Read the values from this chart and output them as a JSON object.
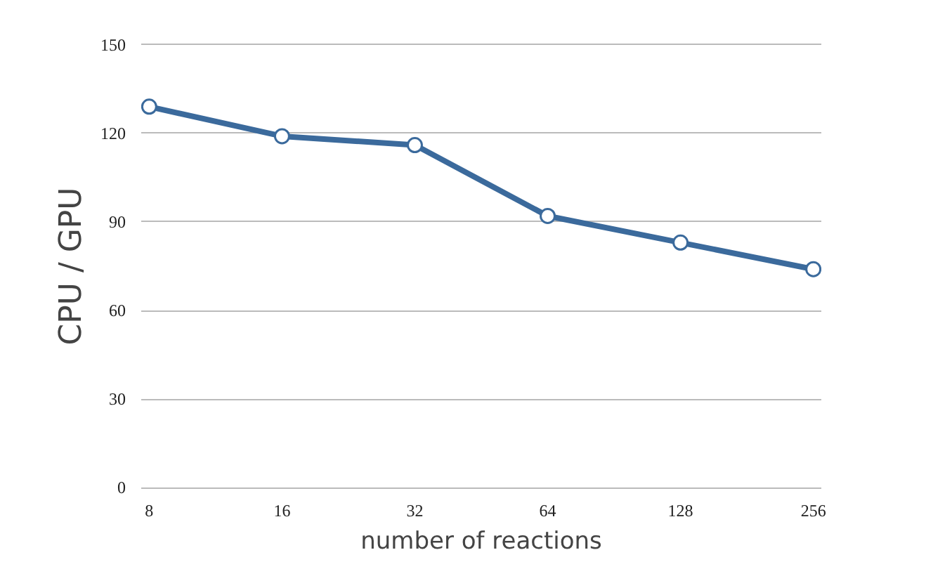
{
  "chart_data": {
    "type": "line",
    "xlabel": "number of reactions",
    "ylabel": "CPU / GPU",
    "categories": [
      "8",
      "16",
      "32",
      "64",
      "128",
      "256"
    ],
    "series": [
      {
        "color": "#3b6a9c",
        "values": [
          129,
          119,
          116,
          92,
          83,
          74
        ]
      }
    ],
    "ylim": [
      0,
      150
    ],
    "yticks": [
      0,
      30,
      60,
      90,
      120,
      150
    ],
    "grid": "y",
    "marker": "circle",
    "line_style": "solid"
  }
}
